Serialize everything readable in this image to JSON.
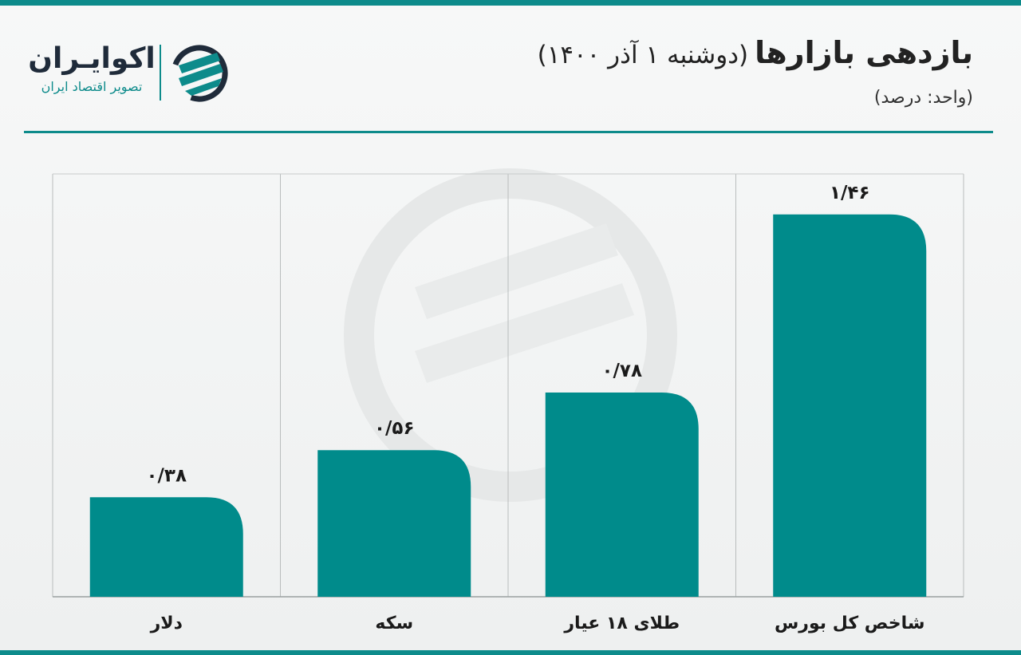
{
  "header": {
    "title": "بازدهی بازارها",
    "date": "(دوشنبه ۱ آذر ۱۴۰۰)",
    "unit": "(واحد: درصد)"
  },
  "logo": {
    "name": "اکوایـران",
    "tagline": "تصویر اقتصاد ایران"
  },
  "colors": {
    "accent": "#0d8b8b",
    "bar": "#008b8b",
    "text": "#1a1a1a"
  },
  "chart_data": {
    "type": "bar",
    "categories": [
      "شاخص کل بورس",
      "طلای ۱۸ عیار",
      "سکه",
      "دلار"
    ],
    "values": [
      1.46,
      0.78,
      0.56,
      0.38
    ],
    "value_labels": [
      "۱/۴۶",
      "۰/۷۸",
      "۰/۵۶",
      "۰/۳۸"
    ],
    "ylim": [
      0,
      1.7
    ],
    "grid": false,
    "category_order": "right-to-left"
  }
}
